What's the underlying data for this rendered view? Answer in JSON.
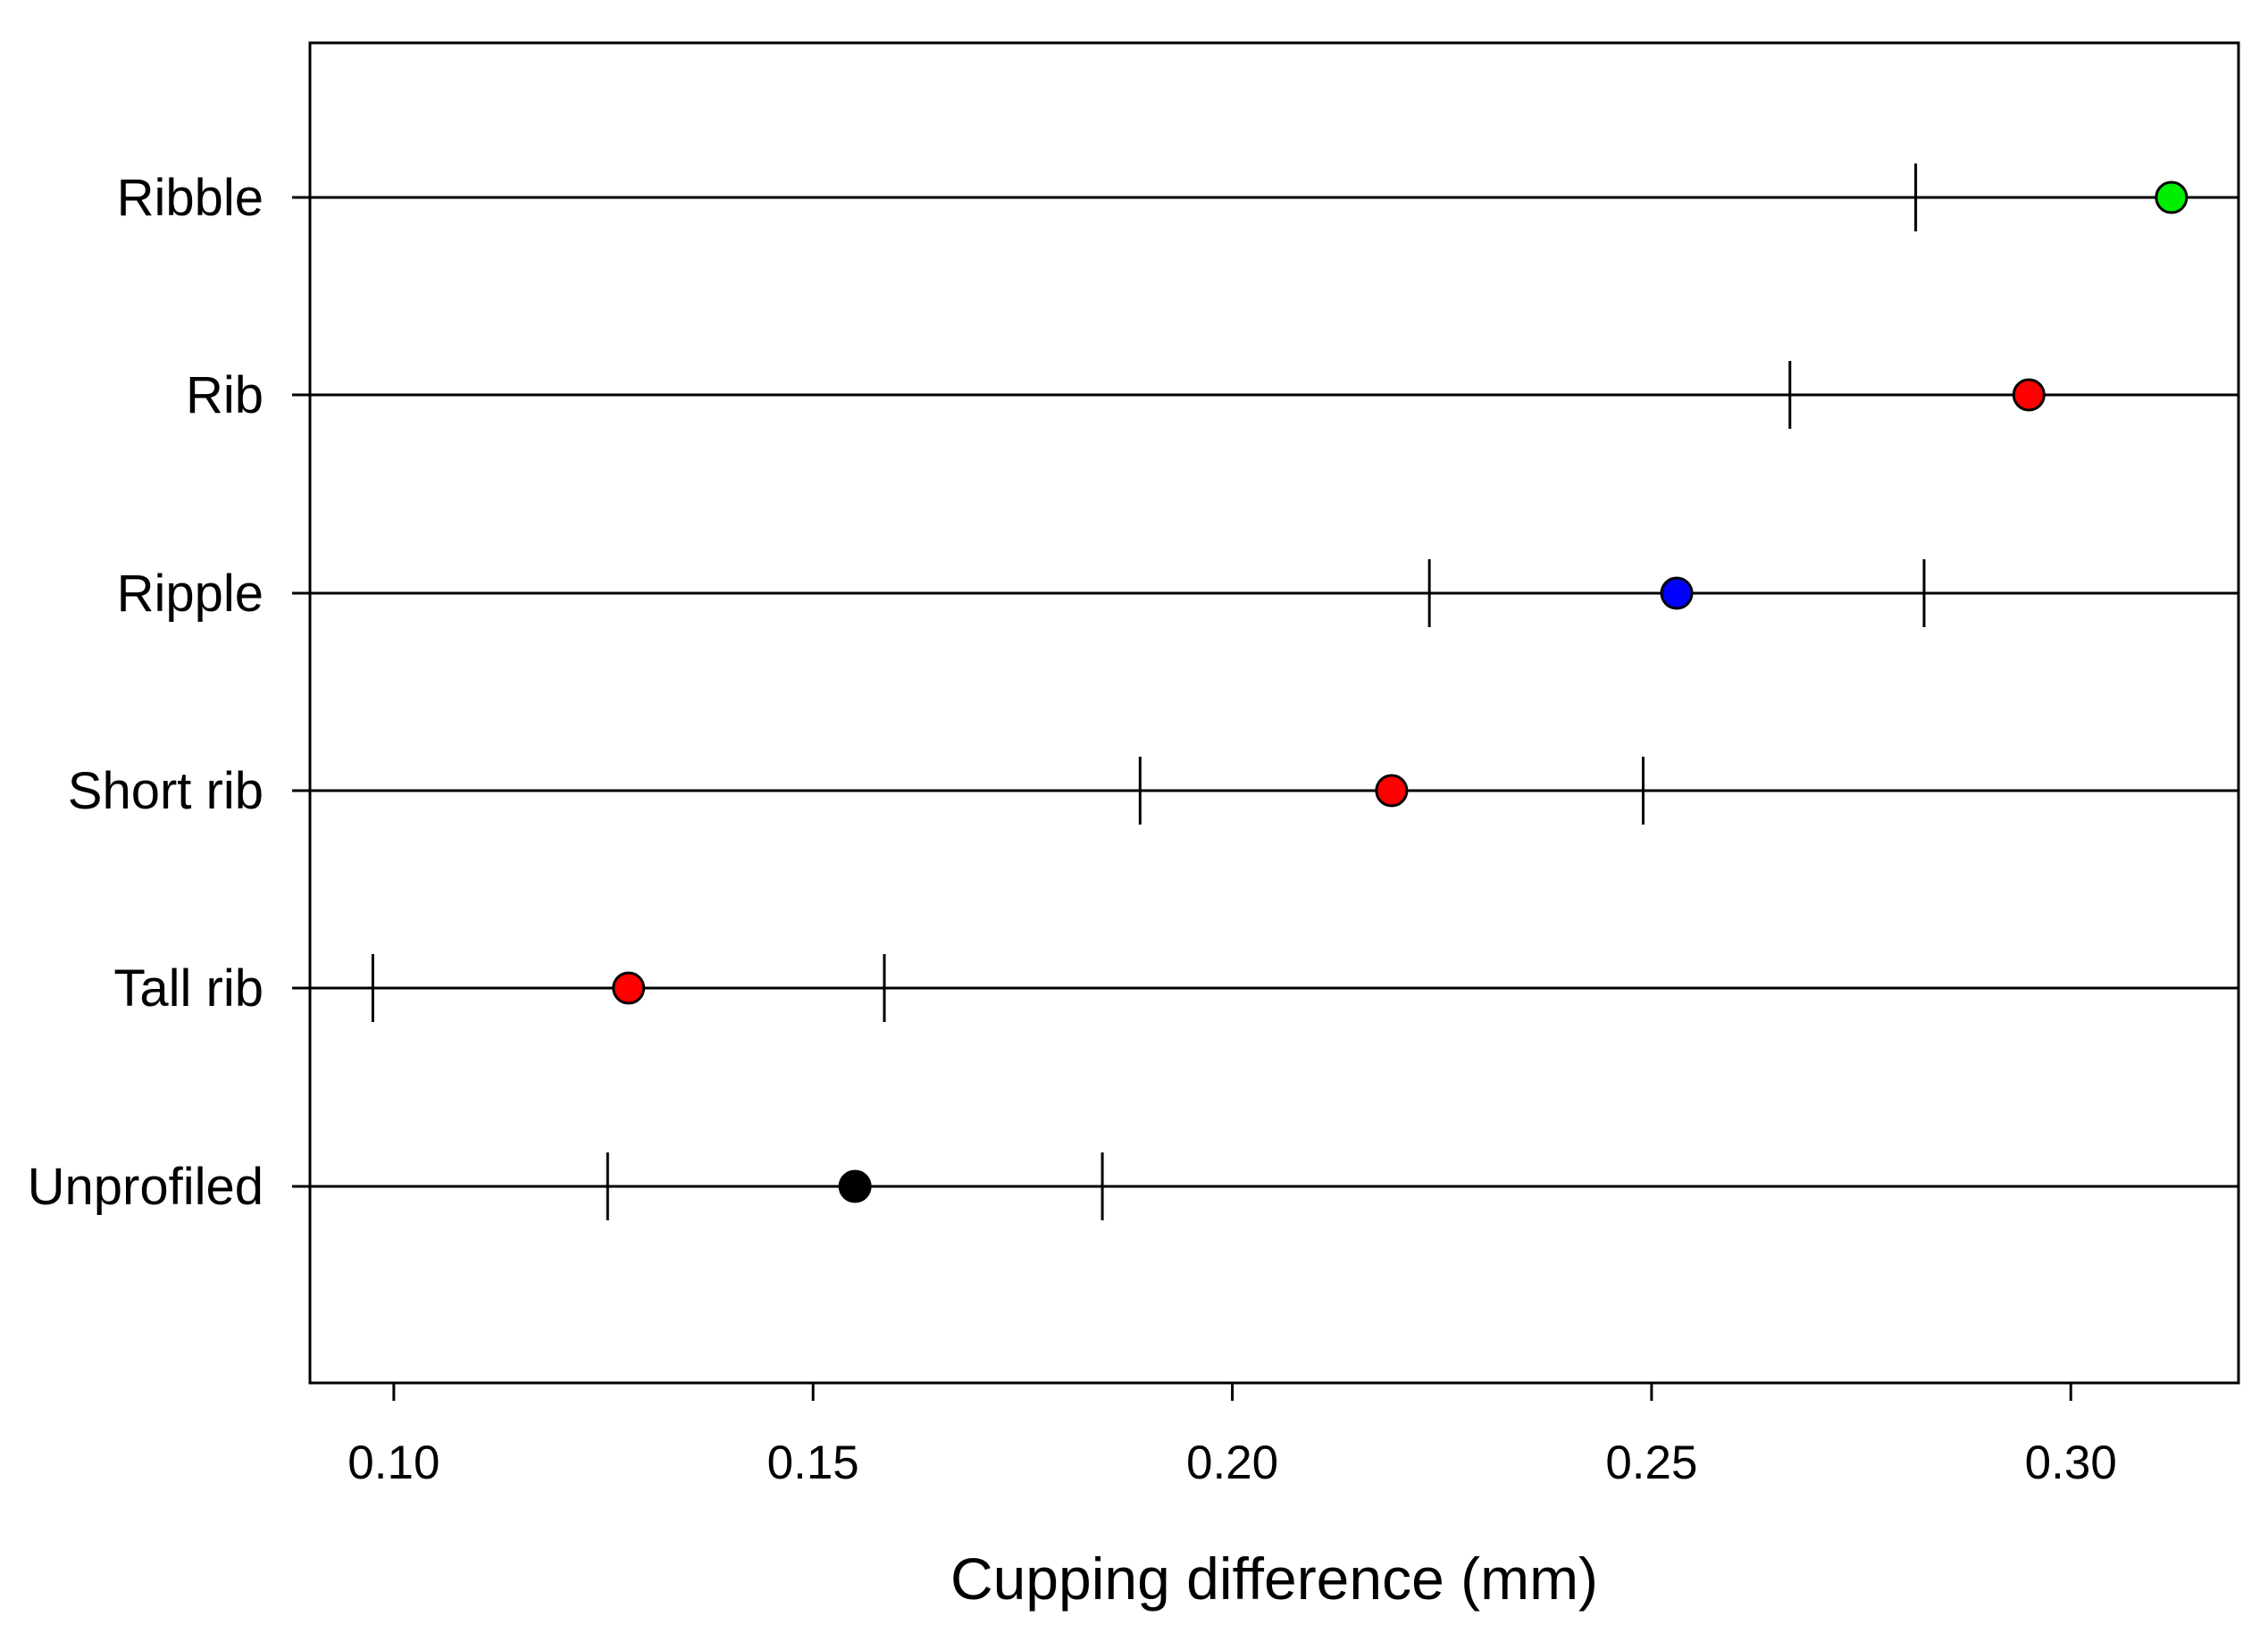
{
  "chart_data": {
    "type": "scatter",
    "subtype": "interval-dot-plot",
    "title": "",
    "xlabel": "Cupping difference (mm)",
    "ylabel": "",
    "xlim": [
      0.09,
      0.32
    ],
    "xticks": [
      0.1,
      0.15,
      0.2,
      0.25,
      0.3
    ],
    "xtick_labels": [
      "0.10",
      "0.15",
      "0.20",
      "0.25",
      "0.30"
    ],
    "grid": false,
    "legend": "none",
    "categories": [
      "Ribble",
      "Rib",
      "Ripple",
      "Short rib",
      "Tall rib",
      "Unprofiled"
    ],
    "points": [
      {
        "category": "Ribble",
        "value": 0.312,
        "lower": 0.2815,
        "upper": null,
        "color": "#00ee00"
      },
      {
        "category": "Rib",
        "value": 0.295,
        "lower": 0.2665,
        "upper": null,
        "color": "#ff0000"
      },
      {
        "category": "Ripple",
        "value": 0.253,
        "lower": 0.2235,
        "upper": 0.2825,
        "color": "#0000ff"
      },
      {
        "category": "Short rib",
        "value": 0.219,
        "lower": 0.189,
        "upper": 0.249,
        "color": "#ff0000"
      },
      {
        "category": "Tall rib",
        "value": 0.128,
        "lower": 0.0975,
        "upper": 0.1585,
        "color": "#ff0000"
      },
      {
        "category": "Unprofiled",
        "value": 0.155,
        "lower": 0.1255,
        "upper": 0.1845,
        "color": "#000000"
      }
    ]
  }
}
